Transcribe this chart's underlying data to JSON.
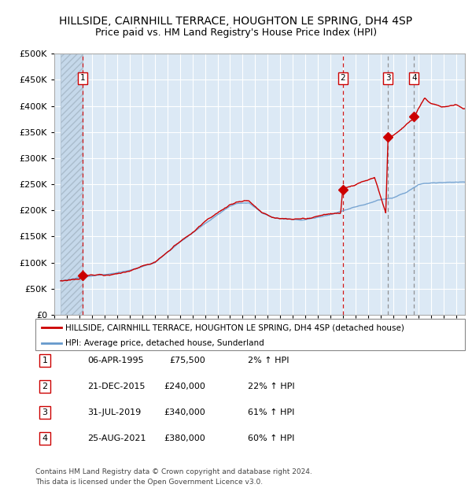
{
  "title": "HILLSIDE, CAIRNHILL TERRACE, HOUGHTON LE SPRING, DH4 4SP",
  "subtitle": "Price paid vs. HM Land Registry's House Price Index (HPI)",
  "ylim": [
    0,
    500000
  ],
  "yticks": [
    0,
    50000,
    100000,
    150000,
    200000,
    250000,
    300000,
    350000,
    400000,
    450000,
    500000
  ],
  "ytick_labels": [
    "£0",
    "£50K",
    "£100K",
    "£150K",
    "£200K",
    "£250K",
    "£300K",
    "£350K",
    "£400K",
    "£450K",
    "£500K"
  ],
  "xlim_start": 1993.5,
  "xlim_end": 2025.7,
  "hpi_color": "#6699cc",
  "price_color": "#cc0000",
  "sale_marker_color": "#cc0000",
  "bg_color": "#dce9f5",
  "grid_color": "#ffffff",
  "vline_color_red": "#cc0000",
  "vline_color_gray": "#888888",
  "sales": [
    {
      "date": 1995.27,
      "price": 75500,
      "label": "1",
      "vline": "red"
    },
    {
      "date": 2015.97,
      "price": 240000,
      "label": "2",
      "vline": "red"
    },
    {
      "date": 2019.58,
      "price": 340000,
      "label": "3",
      "vline": "gray"
    },
    {
      "date": 2021.65,
      "price": 380000,
      "label": "4",
      "vline": "gray"
    }
  ],
  "legend_entries": [
    {
      "label": "HILLSIDE, CAIRNHILL TERRACE, HOUGHTON LE SPRING, DH4 4SP (detached house)",
      "color": "#cc0000"
    },
    {
      "label": "HPI: Average price, detached house, Sunderland",
      "color": "#6699cc"
    }
  ],
  "table_rows": [
    {
      "num": "1",
      "date": "06-APR-1995",
      "price": "£75,500",
      "hpi": "2% ↑ HPI"
    },
    {
      "num": "2",
      "date": "21-DEC-2015",
      "price": "£240,000",
      "hpi": "22% ↑ HPI"
    },
    {
      "num": "3",
      "date": "31-JUL-2019",
      "price": "£340,000",
      "hpi": "61% ↑ HPI"
    },
    {
      "num": "4",
      "date": "25-AUG-2021",
      "price": "£380,000",
      "hpi": "60% ↑ HPI"
    }
  ],
  "footnote": "Contains HM Land Registry data © Crown copyright and database right 2024.\nThis data is licensed under the Open Government Licence v3.0.",
  "hpi_anchors": [
    [
      1993.5,
      65000
    ],
    [
      1995.0,
      70000
    ],
    [
      1997.0,
      76000
    ],
    [
      1999.0,
      83000
    ],
    [
      2001.0,
      98000
    ],
    [
      2003.0,
      138000
    ],
    [
      2005.0,
      172000
    ],
    [
      2007.0,
      205000
    ],
    [
      2007.5,
      210000
    ],
    [
      2008.5,
      212000
    ],
    [
      2009.5,
      193000
    ],
    [
      2010.5,
      183000
    ],
    [
      2012.0,
      180000
    ],
    [
      2013.0,
      181000
    ],
    [
      2014.5,
      188000
    ],
    [
      2016.0,
      196000
    ],
    [
      2017.5,
      207000
    ],
    [
      2019.0,
      218000
    ],
    [
      2020.0,
      222000
    ],
    [
      2021.0,
      232000
    ],
    [
      2022.0,
      248000
    ],
    [
      2023.0,
      253000
    ],
    [
      2024.0,
      254000
    ],
    [
      2025.5,
      256000
    ]
  ],
  "pp_anchors": [
    [
      1993.5,
      65000
    ],
    [
      1995.0,
      70000
    ],
    [
      1995.27,
      75500
    ],
    [
      1997.0,
      77000
    ],
    [
      1999.0,
      84000
    ],
    [
      2001.0,
      99000
    ],
    [
      2003.0,
      140000
    ],
    [
      2005.0,
      175000
    ],
    [
      2007.0,
      207000
    ],
    [
      2007.5,
      212000
    ],
    [
      2008.5,
      215000
    ],
    [
      2009.5,
      194000
    ],
    [
      2010.5,
      184000
    ],
    [
      2012.0,
      181000
    ],
    [
      2013.0,
      183000
    ],
    [
      2014.5,
      190000
    ],
    [
      2015.8,
      192000
    ],
    [
      2015.97,
      240000
    ],
    [
      2016.5,
      243000
    ],
    [
      2017.5,
      252000
    ],
    [
      2018.5,
      262000
    ],
    [
      2019.4,
      195000
    ],
    [
      2019.58,
      340000
    ],
    [
      2020.0,
      343000
    ],
    [
      2021.5,
      375000
    ],
    [
      2021.65,
      380000
    ],
    [
      2022.0,
      398000
    ],
    [
      2022.5,
      418000
    ],
    [
      2023.0,
      408000
    ],
    [
      2024.0,
      403000
    ],
    [
      2025.0,
      406000
    ],
    [
      2025.5,
      398000
    ]
  ]
}
